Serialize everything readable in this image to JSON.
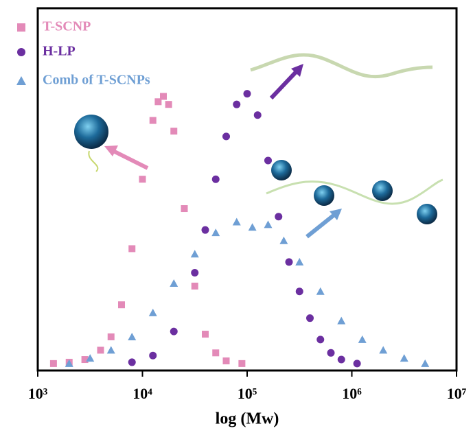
{
  "chart_data": {
    "type": "scatter",
    "x_label": "log (Mw)",
    "xscale": "log",
    "xlim": [
      1000,
      10000000
    ],
    "xticks": [
      {
        "value": 1000,
        "label": "10³"
      },
      {
        "value": 10000,
        "label": "10⁴"
      },
      {
        "value": 100000,
        "label": "10⁵"
      },
      {
        "value": 1000000,
        "label": "10⁶"
      },
      {
        "value": 10000000,
        "label": "10⁷"
      }
    ],
    "ylim": [
      -0.026,
      1.33
    ],
    "legend": "upper left",
    "series": [
      {
        "name": "T-SCNP",
        "color": "#e38ab8",
        "marker": "square",
        "x": [
          1413,
          1995,
          2818,
          3981,
          5012,
          6310,
          7943,
          10000,
          12589,
          14125,
          15849,
          17783,
          19953,
          25119,
          31623,
          39811,
          50119,
          63096,
          89125
        ],
        "values": [
          0.0,
          0.005,
          0.015,
          0.05,
          0.1,
          0.22,
          0.43,
          0.69,
          0.91,
          0.98,
          1.0,
          0.97,
          0.87,
          0.58,
          0.29,
          0.11,
          0.04,
          0.01,
          0.0
        ]
      },
      {
        "name": "H-LP",
        "color": "#6b2fa0",
        "marker": "circle",
        "x": [
          7943,
          12589,
          19953,
          31623,
          39811,
          50119,
          63096,
          79433,
          100000,
          125893,
          158489,
          199526,
          251189,
          316228,
          398107,
          501187,
          630957,
          794328,
          1122018
        ],
        "values": [
          0.005,
          0.03,
          0.12,
          0.34,
          0.5,
          0.69,
          0.85,
          0.97,
          1.01,
          0.93,
          0.76,
          0.55,
          0.38,
          0.27,
          0.17,
          0.09,
          0.04,
          0.015,
          0.0
        ]
      },
      {
        "name": "Comb of T-SCNPs",
        "color": "#6f9fd4",
        "marker": "triangle",
        "x": [
          1995,
          3162,
          5012,
          7943,
          12589,
          19953,
          31623,
          50119,
          79433,
          112202,
          158489,
          223872,
          316228,
          501187,
          794328,
          1258925,
          1995262,
          3162278,
          5011872
        ],
        "values": [
          0.0,
          0.02,
          0.05,
          0.1,
          0.19,
          0.3,
          0.41,
          0.49,
          0.53,
          0.51,
          0.52,
          0.46,
          0.38,
          0.27,
          0.16,
          0.09,
          0.05,
          0.02,
          0.0
        ]
      }
    ]
  }
}
